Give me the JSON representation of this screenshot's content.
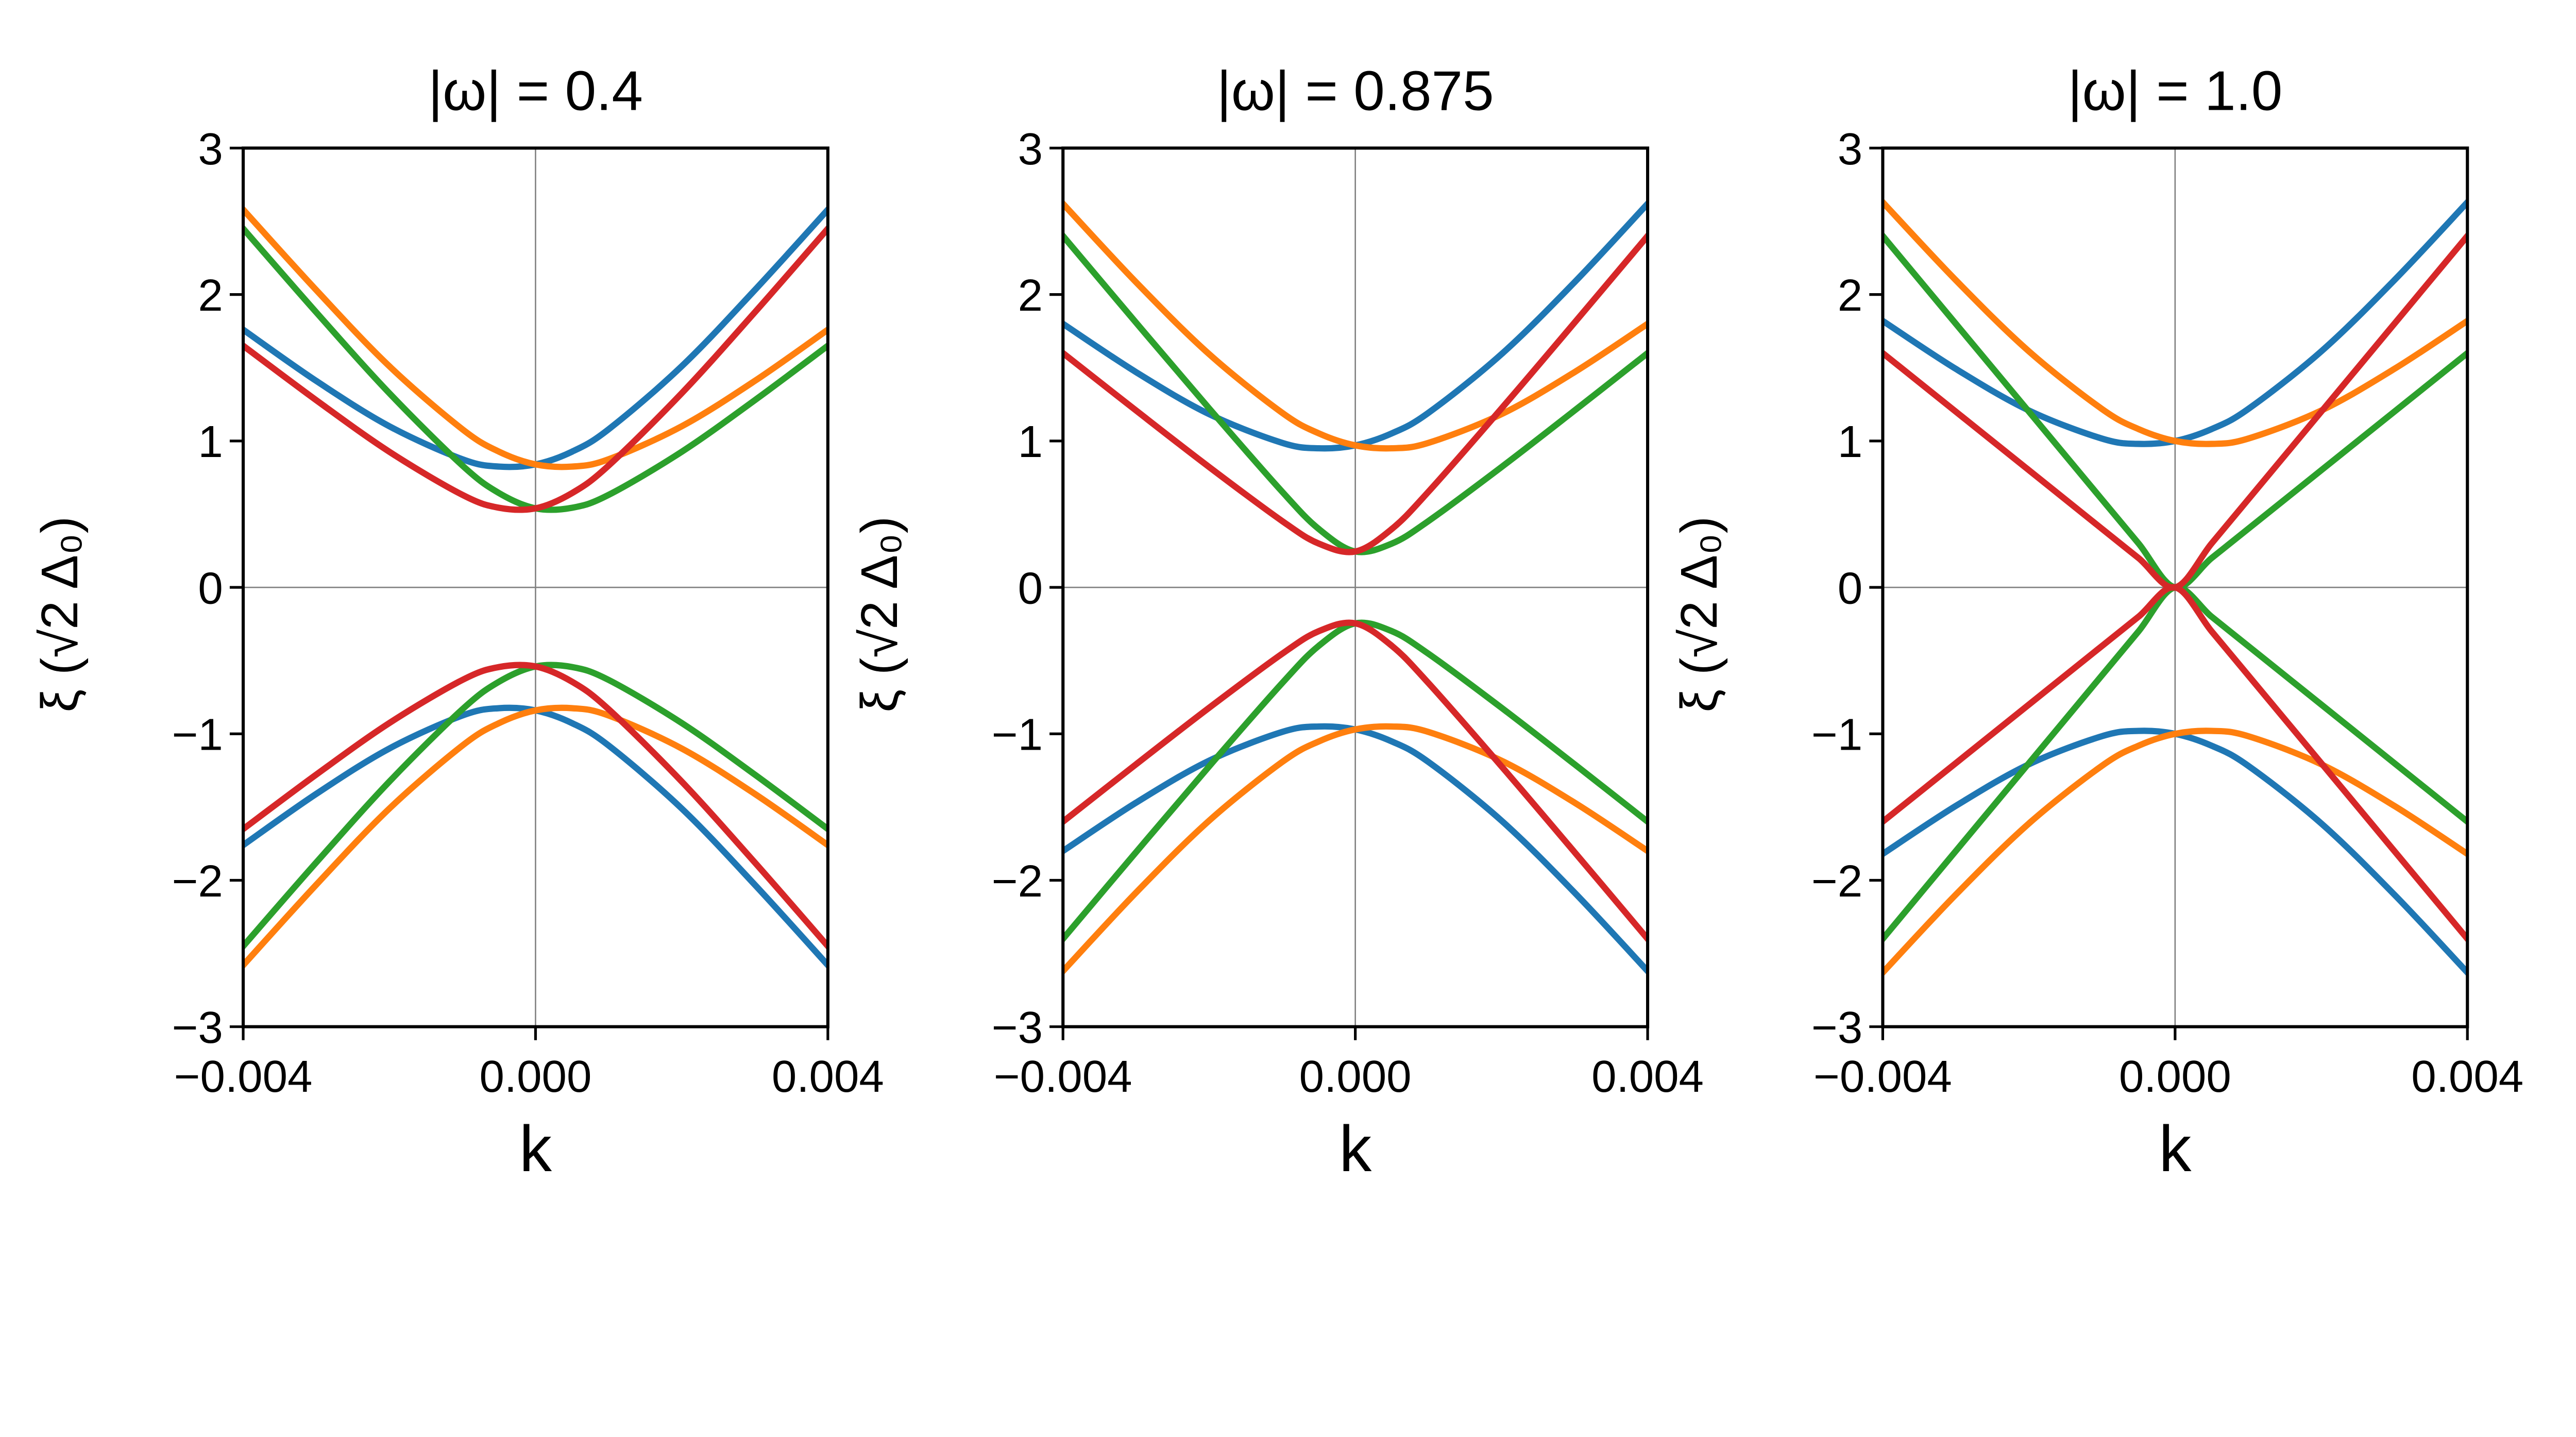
{
  "chart_data": [
    {
      "type": "line",
      "title": "|ω| = 0.4",
      "xlabel": "k",
      "ylabel": "ξ  (√2 Δ₀)",
      "xlim": [
        -0.004,
        0.004
      ],
      "ylim": [
        -3,
        3
      ],
      "xticks": [
        -0.004,
        0.0,
        0.004
      ],
      "xtick_labels": [
        "−0.004",
        "0.000",
        "0.004"
      ],
      "yticks": [
        -3,
        -2,
        -1,
        0,
        1,
        2,
        3
      ],
      "ytick_labels": [
        "−3",
        "−2",
        "−1",
        "0",
        "1",
        "2",
        "3"
      ],
      "grid": "zero-lines only",
      "x": [
        -0.004,
        -0.003,
        -0.002,
        -0.001,
        -0.0005,
        0,
        0.0005,
        0.001,
        0.002,
        0.003,
        0.004
      ],
      "series": [
        {
          "color": "#1f77b4",
          "values": [
            1.76,
            1.41,
            1.1,
            0.875,
            0.825,
            0.84,
            0.927,
            1.08,
            1.51,
            2.03,
            2.58
          ]
        },
        {
          "color": "#1f77b4",
          "values": [
            -1.76,
            -1.41,
            -1.1,
            -0.875,
            -0.825,
            -0.84,
            -0.927,
            -1.08,
            -1.51,
            -2.03,
            -2.58
          ]
        },
        {
          "color": "#ff7f0e",
          "values": [
            2.58,
            2.03,
            1.51,
            1.08,
            0.927,
            0.84,
            0.825,
            0.875,
            1.1,
            1.41,
            1.76
          ]
        },
        {
          "color": "#ff7f0e",
          "values": [
            -2.58,
            -2.03,
            -1.51,
            -1.08,
            -0.927,
            -0.84,
            -0.825,
            -0.875,
            -1.1,
            -1.41,
            -1.76
          ]
        },
        {
          "color": "#2ca02c",
          "values": [
            2.45,
            1.878,
            1.326,
            0.832,
            0.644,
            0.54,
            0.544,
            0.632,
            0.926,
            1.278,
            1.65
          ]
        },
        {
          "color": "#2ca02c",
          "values": [
            -2.45,
            -1.878,
            -1.326,
            -0.832,
            -0.644,
            -0.54,
            -0.544,
            -0.632,
            -0.926,
            -1.278,
            -1.65
          ]
        },
        {
          "color": "#d62728",
          "values": [
            1.65,
            1.278,
            0.926,
            0.632,
            0.544,
            0.54,
            0.644,
            0.832,
            1.326,
            1.878,
            2.45
          ]
        },
        {
          "color": "#d62728",
          "values": [
            -1.65,
            -1.278,
            -0.926,
            -0.632,
            -0.544,
            -0.54,
            -0.644,
            -0.832,
            -1.326,
            -1.878,
            -2.45
          ]
        }
      ]
    },
    {
      "type": "line",
      "title": "|ω| = 0.875",
      "xlabel": "k",
      "ylabel": "ξ  (√2 Δ₀)",
      "xlim": [
        -0.004,
        0.004
      ],
      "ylim": [
        -3,
        3
      ],
      "xticks": [
        -0.004,
        0.0,
        0.004
      ],
      "xtick_labels": [
        "−0.004",
        "0.000",
        "0.004"
      ],
      "yticks": [
        -3,
        -2,
        -1,
        0,
        1,
        2,
        3
      ],
      "ytick_labels": [
        "−3",
        "−2",
        "−1",
        "0",
        "1",
        "2",
        "3"
      ],
      "grid": "zero-lines only",
      "x": [
        -0.004,
        -0.003,
        -0.002,
        -0.001,
        -0.0005,
        0,
        0.0005,
        0.001,
        0.002,
        0.003,
        0.004
      ],
      "series": [
        {
          "color": "#1f77b4",
          "values": [
            1.8,
            1.47,
            1.183,
            0.987,
            0.95,
            0.97,
            1.052,
            1.192,
            1.593,
            2.084,
            2.62
          ]
        },
        {
          "color": "#1f77b4",
          "values": [
            -1.8,
            -1.47,
            -1.183,
            -0.987,
            -0.95,
            -0.97,
            -1.052,
            -1.192,
            -1.593,
            -2.084,
            -2.62
          ]
        },
        {
          "color": "#ff7f0e",
          "values": [
            2.62,
            2.084,
            1.593,
            1.192,
            1.052,
            0.97,
            0.95,
            0.987,
            1.183,
            1.47,
            1.8
          ]
        },
        {
          "color": "#ff7f0e",
          "values": [
            -2.62,
            -2.084,
            -1.593,
            -1.192,
            -1.052,
            -0.97,
            -0.95,
            -0.987,
            -1.183,
            -1.47,
            -1.8
          ]
        },
        {
          "color": "#2ca02c",
          "values": [
            2.4,
            1.808,
            1.222,
            0.653,
            0.399,
            0.245,
            0.299,
            0.453,
            0.822,
            1.208,
            1.6
          ]
        },
        {
          "color": "#2ca02c",
          "values": [
            -2.4,
            -1.808,
            -1.222,
            -0.653,
            -0.399,
            -0.245,
            -0.299,
            -0.453,
            -0.822,
            -1.208,
            -1.6
          ]
        },
        {
          "color": "#d62728",
          "values": [
            1.6,
            1.208,
            0.822,
            0.453,
            0.299,
            0.245,
            0.399,
            0.653,
            1.222,
            1.808,
            2.4
          ]
        },
        {
          "color": "#d62728",
          "values": [
            -1.6,
            -1.208,
            -0.822,
            -0.453,
            -0.299,
            -0.245,
            -0.399,
            -0.653,
            -1.222,
            -1.808,
            -2.4
          ]
        }
      ]
    },
    {
      "type": "line",
      "title": "|ω| = 1.0",
      "xlabel": "k",
      "ylabel": "ξ  (√2 Δ₀)",
      "xlim": [
        -0.004,
        0.004
      ],
      "ylim": [
        -3,
        3
      ],
      "xticks": [
        -0.004,
        0.0,
        0.004
      ],
      "xtick_labels": [
        "−0.004",
        "0.000",
        "0.004"
      ],
      "yticks": [
        -3,
        -2,
        -1,
        0,
        1,
        2,
        3
      ],
      "ytick_labels": [
        "−3",
        "−2",
        "−1",
        "0",
        "1",
        "2",
        "3"
      ],
      "grid": "zero-lines only",
      "x": [
        -0.004,
        -0.003,
        -0.002,
        -0.001,
        -0.0005,
        0,
        0.0005,
        0.001,
        0.002,
        0.003,
        0.004
      ],
      "series": [
        {
          "color": "#1f77b4",
          "values": [
            1.82,
            1.492,
            1.208,
            1.016,
            0.98,
            1.0,
            1.081,
            1.218,
            1.612,
            2.098,
            2.63
          ]
        },
        {
          "color": "#1f77b4",
          "values": [
            -1.82,
            -1.492,
            -1.208,
            -1.016,
            -0.98,
            -1.0,
            -1.081,
            -1.218,
            -1.612,
            -2.098,
            -2.63
          ]
        },
        {
          "color": "#ff7f0e",
          "values": [
            2.63,
            2.098,
            1.612,
            1.218,
            1.081,
            1.0,
            0.98,
            1.016,
            1.208,
            1.492,
            1.82
          ]
        },
        {
          "color": "#ff7f0e",
          "values": [
            -2.63,
            -2.098,
            -1.612,
            -1.218,
            -1.081,
            -1.0,
            -0.98,
            -1.016,
            -1.208,
            -1.492,
            -1.82
          ]
        },
        {
          "color": "#2ca02c",
          "values": [
            2.4,
            1.8,
            1.2,
            0.6,
            0.3,
            0,
            0.2,
            0.4,
            0.8,
            1.2,
            1.6
          ]
        },
        {
          "color": "#2ca02c",
          "values": [
            -2.4,
            -1.8,
            -1.2,
            -0.6,
            -0.3,
            0,
            -0.2,
            -0.4,
            -0.8,
            -1.2,
            -1.6
          ]
        },
        {
          "color": "#d62728",
          "values": [
            1.6,
            1.2,
            0.8,
            0.4,
            0.2,
            0,
            0.3,
            0.6,
            1.2,
            1.8,
            2.4
          ]
        },
        {
          "color": "#d62728",
          "values": [
            -1.6,
            -1.2,
            -0.8,
            -0.4,
            -0.2,
            0,
            -0.3,
            -0.6,
            -1.2,
            -1.8,
            -2.4
          ]
        }
      ]
    }
  ]
}
